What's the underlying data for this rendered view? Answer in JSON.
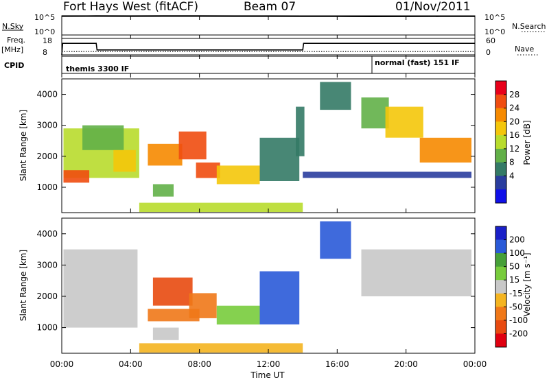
{
  "header": {
    "radar": "Fort Hays West (fitACF)",
    "beam": "Beam 07",
    "date": "01/Nov/2011"
  },
  "top_panels": {
    "nsky_label": "N.Sky",
    "nsky_ticks": [
      "10^5",
      "10^0"
    ],
    "nsearch_label": "N.Search",
    "nsearch_ticks": [
      "10^5",
      "10^0"
    ],
    "freq_label": "Freq.",
    "freq_unit": "[MHz]",
    "freq_ticks": [
      "18",
      "8"
    ],
    "nave_label": "Nave",
    "nave_ticks": [
      "60",
      "0"
    ],
    "cpid_label": "CPID",
    "cpid_segments": [
      "themis 3300 IF",
      "normal (fast) 151 IF"
    ]
  },
  "axes": {
    "ylabel": "Slant Range [km]",
    "yticks": [
      "4000",
      "3000",
      "2000",
      "1000"
    ],
    "xticks": [
      "00:00",
      "04:00",
      "08:00",
      "12:00",
      "16:00",
      "20:00",
      "00:00"
    ],
    "xlabel": "Time UT"
  },
  "power_colorbar": {
    "label": "Power [dB]",
    "ticks": [
      "28",
      "24",
      "20",
      "16",
      "12",
      "8",
      "4"
    ],
    "colors": [
      "#e8001a",
      "#f04d10",
      "#f68a00",
      "#f4c60a",
      "#b8dc2c",
      "#62b048",
      "#347a66",
      "#2a3d9e",
      "#1010e8"
    ]
  },
  "velocity_colorbar": {
    "label": "Velocity [m s⁻¹]",
    "ticks": [
      "200",
      "100",
      "50",
      "15",
      "-15",
      "-50",
      "-100",
      "-200"
    ],
    "colors": [
      "#1a20c8",
      "#2a5ad8",
      "#46a038",
      "#78cc3c",
      "#c8c8c8",
      "#f4b420",
      "#f07818",
      "#e84a10",
      "#e00010"
    ]
  },
  "chart_data": [
    {
      "type": "line",
      "title": "N.Sky / N.Search",
      "x_unit": "hours UT",
      "x": [
        0,
        2,
        4,
        6,
        8,
        10,
        12,
        14,
        16,
        18,
        20,
        22,
        24
      ],
      "series": [
        {
          "name": "N.Sky",
          "values": [
            80000,
            85000,
            82000,
            84000,
            86000,
            83000,
            80000,
            78000,
            74000,
            70000,
            72000,
            75000,
            78000
          ]
        }
      ],
      "ylim": [
        1,
        100000
      ],
      "yscale": "log"
    },
    {
      "type": "line",
      "title": "Freq. [MHz] / Nave",
      "x": [
        0,
        0.05,
        2.0,
        2.05,
        14.0,
        14.05,
        24
      ],
      "series": [
        {
          "name": "Freq.",
          "values": [
            8,
            15,
            15,
            11,
            11,
            15,
            15
          ]
        }
      ],
      "ylim": [
        8,
        18
      ]
    },
    {
      "type": "heatmap",
      "title": "Power [dB]",
      "xlim": [
        0,
        24
      ],
      "ylim": [
        180,
        4500
      ],
      "cells": [
        {
          "t0": 0.1,
          "t1": 4.5,
          "r0": 1300,
          "r1": 2900,
          "v": 14
        },
        {
          "t0": 0.1,
          "t1": 1.6,
          "r0": 1150,
          "r1": 1550,
          "v": 26
        },
        {
          "t0": 1.2,
          "t1": 3.6,
          "r0": 2200,
          "r1": 3000,
          "v": 10
        },
        {
          "t0": 3.0,
          "t1": 4.3,
          "r0": 1500,
          "r1": 2200,
          "v": 18
        },
        {
          "t0": 5.0,
          "t1": 7.0,
          "r0": 1700,
          "r1": 2400,
          "v": 22
        },
        {
          "t0": 5.3,
          "t1": 6.5,
          "r0": 700,
          "r1": 1100,
          "v": 12
        },
        {
          "t0": 6.8,
          "t1": 8.4,
          "r0": 1900,
          "r1": 2800,
          "v": 26
        },
        {
          "t0": 7.8,
          "t1": 9.2,
          "r0": 1300,
          "r1": 1800,
          "v": 28
        },
        {
          "t0": 9.0,
          "t1": 11.5,
          "r0": 1100,
          "r1": 1700,
          "v": 18
        },
        {
          "t0": 11.5,
          "t1": 13.8,
          "r0": 1200,
          "r1": 2600,
          "v": 8
        },
        {
          "t0": 13.6,
          "t1": 14.1,
          "r0": 2000,
          "r1": 3600,
          "v": 6
        },
        {
          "t0": 15.0,
          "t1": 16.8,
          "r0": 3500,
          "r1": 4400,
          "v": 6
        },
        {
          "t0": 17.4,
          "t1": 19.0,
          "r0": 2900,
          "r1": 3900,
          "v": 10
        },
        {
          "t0": 18.8,
          "t1": 21.0,
          "r0": 2600,
          "r1": 3600,
          "v": 20
        },
        {
          "t0": 20.8,
          "t1": 23.8,
          "r0": 1800,
          "r1": 2600,
          "v": 24
        },
        {
          "t0": 14.0,
          "t1": 23.8,
          "r0": 1300,
          "r1": 1500,
          "v": 4
        },
        {
          "t0": 4.5,
          "t1": 14.0,
          "r0": 200,
          "r1": 500,
          "v": 16
        }
      ]
    },
    {
      "type": "heatmap",
      "title": "Velocity [m s⁻¹]",
      "xlim": [
        0,
        24
      ],
      "ylim": [
        180,
        4500
      ],
      "cells": [
        {
          "t0": 0.1,
          "t1": 4.4,
          "r0": 1000,
          "r1": 3500,
          "v": 0
        },
        {
          "t0": 5.3,
          "t1": 7.6,
          "r0": 1700,
          "r1": 2600,
          "v": -200
        },
        {
          "t0": 7.4,
          "t1": 9.0,
          "r0": 1300,
          "r1": 2100,
          "v": -70
        },
        {
          "t0": 5.0,
          "t1": 8.0,
          "r0": 1200,
          "r1": 1600,
          "v": -70
        },
        {
          "t0": 9.0,
          "t1": 11.5,
          "r0": 1100,
          "r1": 1700,
          "v": 30
        },
        {
          "t0": 11.5,
          "t1": 13.8,
          "r0": 1100,
          "r1": 2800,
          "v": 180
        },
        {
          "t0": 5.3,
          "t1": 6.8,
          "r0": 600,
          "r1": 1000,
          "v": 0
        },
        {
          "t0": 15.0,
          "t1": 16.8,
          "r0": 3200,
          "r1": 4400,
          "v": 180
        },
        {
          "t0": 17.4,
          "t1": 23.8,
          "r0": 2000,
          "r1": 3500,
          "v": 0
        },
        {
          "t0": 4.5,
          "t1": 14.0,
          "r0": 200,
          "r1": 500,
          "v": -40
        }
      ]
    }
  ]
}
